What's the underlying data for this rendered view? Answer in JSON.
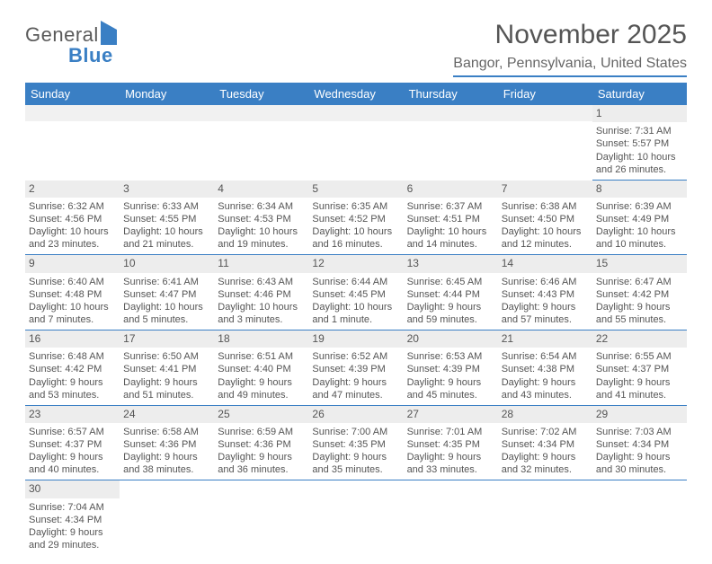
{
  "logo": {
    "word1": "General",
    "word2": "Blue"
  },
  "header": {
    "title": "November 2025",
    "subtitle": "Bangor, Pennsylvania, United States"
  },
  "colors": {
    "accent": "#3a7fc4",
    "header_strip_bg": "#ededed",
    "blank_bg": "#f1f1f1",
    "text": "#555555",
    "background": "#ffffff"
  },
  "typography": {
    "title_fontsize": 30,
    "subtitle_fontsize": 16,
    "daybar_fontsize": 13,
    "cell_fontsize": 11
  },
  "day_names": [
    "Sunday",
    "Monday",
    "Tuesday",
    "Wednesday",
    "Thursday",
    "Friday",
    "Saturday"
  ],
  "weeks": [
    [
      {
        "blank": true
      },
      {
        "blank": true
      },
      {
        "blank": true
      },
      {
        "blank": true
      },
      {
        "blank": true
      },
      {
        "blank": true
      },
      {
        "day": "1",
        "sunrise": "Sunrise: 7:31 AM",
        "sunset": "Sunset: 5:57 PM",
        "daylight": "Daylight: 10 hours and 26 minutes."
      }
    ],
    [
      {
        "day": "2",
        "sunrise": "Sunrise: 6:32 AM",
        "sunset": "Sunset: 4:56 PM",
        "daylight": "Daylight: 10 hours and 23 minutes."
      },
      {
        "day": "3",
        "sunrise": "Sunrise: 6:33 AM",
        "sunset": "Sunset: 4:55 PM",
        "daylight": "Daylight: 10 hours and 21 minutes."
      },
      {
        "day": "4",
        "sunrise": "Sunrise: 6:34 AM",
        "sunset": "Sunset: 4:53 PM",
        "daylight": "Daylight: 10 hours and 19 minutes."
      },
      {
        "day": "5",
        "sunrise": "Sunrise: 6:35 AM",
        "sunset": "Sunset: 4:52 PM",
        "daylight": "Daylight: 10 hours and 16 minutes."
      },
      {
        "day": "6",
        "sunrise": "Sunrise: 6:37 AM",
        "sunset": "Sunset: 4:51 PM",
        "daylight": "Daylight: 10 hours and 14 minutes."
      },
      {
        "day": "7",
        "sunrise": "Sunrise: 6:38 AM",
        "sunset": "Sunset: 4:50 PM",
        "daylight": "Daylight: 10 hours and 12 minutes."
      },
      {
        "day": "8",
        "sunrise": "Sunrise: 6:39 AM",
        "sunset": "Sunset: 4:49 PM",
        "daylight": "Daylight: 10 hours and 10 minutes."
      }
    ],
    [
      {
        "day": "9",
        "sunrise": "Sunrise: 6:40 AM",
        "sunset": "Sunset: 4:48 PM",
        "daylight": "Daylight: 10 hours and 7 minutes."
      },
      {
        "day": "10",
        "sunrise": "Sunrise: 6:41 AM",
        "sunset": "Sunset: 4:47 PM",
        "daylight": "Daylight: 10 hours and 5 minutes."
      },
      {
        "day": "11",
        "sunrise": "Sunrise: 6:43 AM",
        "sunset": "Sunset: 4:46 PM",
        "daylight": "Daylight: 10 hours and 3 minutes."
      },
      {
        "day": "12",
        "sunrise": "Sunrise: 6:44 AM",
        "sunset": "Sunset: 4:45 PM",
        "daylight": "Daylight: 10 hours and 1 minute."
      },
      {
        "day": "13",
        "sunrise": "Sunrise: 6:45 AM",
        "sunset": "Sunset: 4:44 PM",
        "daylight": "Daylight: 9 hours and 59 minutes."
      },
      {
        "day": "14",
        "sunrise": "Sunrise: 6:46 AM",
        "sunset": "Sunset: 4:43 PM",
        "daylight": "Daylight: 9 hours and 57 minutes."
      },
      {
        "day": "15",
        "sunrise": "Sunrise: 6:47 AM",
        "sunset": "Sunset: 4:42 PM",
        "daylight": "Daylight: 9 hours and 55 minutes."
      }
    ],
    [
      {
        "day": "16",
        "sunrise": "Sunrise: 6:48 AM",
        "sunset": "Sunset: 4:42 PM",
        "daylight": "Daylight: 9 hours and 53 minutes."
      },
      {
        "day": "17",
        "sunrise": "Sunrise: 6:50 AM",
        "sunset": "Sunset: 4:41 PM",
        "daylight": "Daylight: 9 hours and 51 minutes."
      },
      {
        "day": "18",
        "sunrise": "Sunrise: 6:51 AM",
        "sunset": "Sunset: 4:40 PM",
        "daylight": "Daylight: 9 hours and 49 minutes."
      },
      {
        "day": "19",
        "sunrise": "Sunrise: 6:52 AM",
        "sunset": "Sunset: 4:39 PM",
        "daylight": "Daylight: 9 hours and 47 minutes."
      },
      {
        "day": "20",
        "sunrise": "Sunrise: 6:53 AM",
        "sunset": "Sunset: 4:39 PM",
        "daylight": "Daylight: 9 hours and 45 minutes."
      },
      {
        "day": "21",
        "sunrise": "Sunrise: 6:54 AM",
        "sunset": "Sunset: 4:38 PM",
        "daylight": "Daylight: 9 hours and 43 minutes."
      },
      {
        "day": "22",
        "sunrise": "Sunrise: 6:55 AM",
        "sunset": "Sunset: 4:37 PM",
        "daylight": "Daylight: 9 hours and 41 minutes."
      }
    ],
    [
      {
        "day": "23",
        "sunrise": "Sunrise: 6:57 AM",
        "sunset": "Sunset: 4:37 PM",
        "daylight": "Daylight: 9 hours and 40 minutes."
      },
      {
        "day": "24",
        "sunrise": "Sunrise: 6:58 AM",
        "sunset": "Sunset: 4:36 PM",
        "daylight": "Daylight: 9 hours and 38 minutes."
      },
      {
        "day": "25",
        "sunrise": "Sunrise: 6:59 AM",
        "sunset": "Sunset: 4:36 PM",
        "daylight": "Daylight: 9 hours and 36 minutes."
      },
      {
        "day": "26",
        "sunrise": "Sunrise: 7:00 AM",
        "sunset": "Sunset: 4:35 PM",
        "daylight": "Daylight: 9 hours and 35 minutes."
      },
      {
        "day": "27",
        "sunrise": "Sunrise: 7:01 AM",
        "sunset": "Sunset: 4:35 PM",
        "daylight": "Daylight: 9 hours and 33 minutes."
      },
      {
        "day": "28",
        "sunrise": "Sunrise: 7:02 AM",
        "sunset": "Sunset: 4:34 PM",
        "daylight": "Daylight: 9 hours and 32 minutes."
      },
      {
        "day": "29",
        "sunrise": "Sunrise: 7:03 AM",
        "sunset": "Sunset: 4:34 PM",
        "daylight": "Daylight: 9 hours and 30 minutes."
      }
    ],
    [
      {
        "day": "30",
        "sunrise": "Sunrise: 7:04 AM",
        "sunset": "Sunset: 4:34 PM",
        "daylight": "Daylight: 9 hours and 29 minutes."
      },
      {
        "blank": true
      },
      {
        "blank": true
      },
      {
        "blank": true
      },
      {
        "blank": true
      },
      {
        "blank": true
      },
      {
        "blank": true
      }
    ]
  ]
}
